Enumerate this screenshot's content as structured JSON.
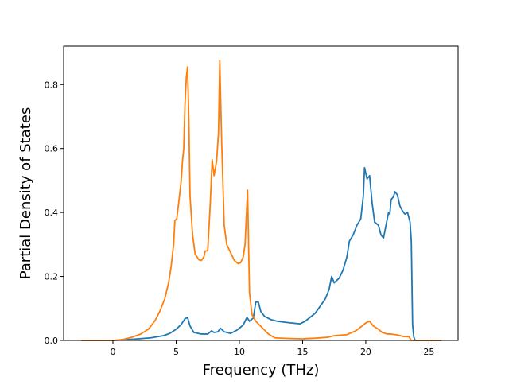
{
  "chart_data": {
    "type": "line",
    "title": "",
    "xlabel": "Frequency (THz)",
    "ylabel": "Partial Density of States",
    "xlim": [
      -3.9,
      27.3
    ],
    "ylim": [
      0,
      0.92
    ],
    "xticks": [
      0,
      5,
      10,
      15,
      20,
      25
    ],
    "yticks": [
      0.0,
      0.2,
      0.4,
      0.6,
      0.8
    ],
    "xtick_labels": [
      "0",
      "5",
      "10",
      "15",
      "20",
      "25"
    ],
    "ytick_labels": [
      "0.0",
      "0.2",
      "0.4",
      "0.6",
      "0.8"
    ],
    "grid": false,
    "legend": "none",
    "series": [
      {
        "color": "#1f77b4",
        "points": [
          [
            -2.5,
            0.0
          ],
          [
            0.0,
            0.0
          ],
          [
            1.0,
            0.002
          ],
          [
            2.0,
            0.005
          ],
          [
            3.0,
            0.008
          ],
          [
            4.0,
            0.015
          ],
          [
            4.5,
            0.022
          ],
          [
            5.0,
            0.035
          ],
          [
            5.4,
            0.05
          ],
          [
            5.7,
            0.068
          ],
          [
            5.9,
            0.072
          ],
          [
            6.1,
            0.045
          ],
          [
            6.4,
            0.025
          ],
          [
            7.0,
            0.02
          ],
          [
            7.5,
            0.02
          ],
          [
            7.8,
            0.03
          ],
          [
            8.0,
            0.025
          ],
          [
            8.3,
            0.027
          ],
          [
            8.5,
            0.038
          ],
          [
            8.8,
            0.027
          ],
          [
            9.3,
            0.022
          ],
          [
            9.8,
            0.032
          ],
          [
            10.3,
            0.048
          ],
          [
            10.6,
            0.072
          ],
          [
            10.8,
            0.06
          ],
          [
            11.1,
            0.07
          ],
          [
            11.3,
            0.12
          ],
          [
            11.5,
            0.12
          ],
          [
            11.7,
            0.09
          ],
          [
            12.0,
            0.075
          ],
          [
            12.5,
            0.065
          ],
          [
            13.0,
            0.06
          ],
          [
            14.0,
            0.055
          ],
          [
            14.8,
            0.052
          ],
          [
            15.2,
            0.06
          ],
          [
            16.0,
            0.085
          ],
          [
            16.8,
            0.13
          ],
          [
            17.1,
            0.16
          ],
          [
            17.3,
            0.2
          ],
          [
            17.5,
            0.18
          ],
          [
            17.9,
            0.195
          ],
          [
            18.2,
            0.22
          ],
          [
            18.5,
            0.26
          ],
          [
            18.7,
            0.31
          ],
          [
            19.0,
            0.33
          ],
          [
            19.3,
            0.36
          ],
          [
            19.6,
            0.38
          ],
          [
            19.8,
            0.45
          ],
          [
            19.9,
            0.54
          ],
          [
            20.1,
            0.505
          ],
          [
            20.3,
            0.515
          ],
          [
            20.5,
            0.43
          ],
          [
            20.7,
            0.37
          ],
          [
            21.0,
            0.36
          ],
          [
            21.2,
            0.33
          ],
          [
            21.4,
            0.32
          ],
          [
            21.6,
            0.36
          ],
          [
            21.8,
            0.4
          ],
          [
            21.9,
            0.395
          ],
          [
            22.0,
            0.44
          ],
          [
            22.2,
            0.45
          ],
          [
            22.3,
            0.465
          ],
          [
            22.5,
            0.455
          ],
          [
            22.7,
            0.42
          ],
          [
            22.9,
            0.405
          ],
          [
            23.1,
            0.395
          ],
          [
            23.3,
            0.4
          ],
          [
            23.5,
            0.37
          ],
          [
            23.6,
            0.31
          ],
          [
            23.7,
            0.05
          ],
          [
            23.8,
            0.01
          ],
          [
            23.9,
            0.0
          ],
          [
            26.0,
            0.0
          ]
        ]
      },
      {
        "color": "#ff7f0e",
        "points": [
          [
            -2.5,
            0.0
          ],
          [
            0.0,
            0.0
          ],
          [
            0.8,
            0.003
          ],
          [
            1.5,
            0.01
          ],
          [
            2.2,
            0.02
          ],
          [
            2.8,
            0.035
          ],
          [
            3.3,
            0.06
          ],
          [
            3.7,
            0.09
          ],
          [
            4.1,
            0.13
          ],
          [
            4.4,
            0.18
          ],
          [
            4.6,
            0.23
          ],
          [
            4.8,
            0.3
          ],
          [
            4.9,
            0.375
          ],
          [
            5.05,
            0.38
          ],
          [
            5.2,
            0.43
          ],
          [
            5.4,
            0.5
          ],
          [
            5.5,
            0.56
          ],
          [
            5.6,
            0.6
          ],
          [
            5.7,
            0.74
          ],
          [
            5.8,
            0.82
          ],
          [
            5.9,
            0.855
          ],
          [
            6.0,
            0.7
          ],
          [
            6.1,
            0.45
          ],
          [
            6.3,
            0.33
          ],
          [
            6.5,
            0.27
          ],
          [
            6.8,
            0.252
          ],
          [
            7.0,
            0.25
          ],
          [
            7.2,
            0.262
          ],
          [
            7.3,
            0.28
          ],
          [
            7.5,
            0.28
          ],
          [
            7.7,
            0.43
          ],
          [
            7.85,
            0.565
          ],
          [
            8.0,
            0.515
          ],
          [
            8.2,
            0.56
          ],
          [
            8.35,
            0.65
          ],
          [
            8.45,
            0.875
          ],
          [
            8.6,
            0.62
          ],
          [
            8.8,
            0.36
          ],
          [
            9.0,
            0.3
          ],
          [
            9.3,
            0.275
          ],
          [
            9.6,
            0.25
          ],
          [
            9.9,
            0.24
          ],
          [
            10.1,
            0.243
          ],
          [
            10.3,
            0.26
          ],
          [
            10.45,
            0.3
          ],
          [
            10.65,
            0.47
          ],
          [
            10.8,
            0.15
          ],
          [
            11.0,
            0.08
          ],
          [
            11.3,
            0.06
          ],
          [
            11.8,
            0.04
          ],
          [
            12.3,
            0.02
          ],
          [
            12.8,
            0.008
          ],
          [
            14.0,
            0.006
          ],
          [
            15.0,
            0.005
          ],
          [
            16.0,
            0.007
          ],
          [
            17.0,
            0.01
          ],
          [
            17.5,
            0.015
          ],
          [
            18.5,
            0.018
          ],
          [
            19.2,
            0.03
          ],
          [
            19.7,
            0.045
          ],
          [
            20.0,
            0.055
          ],
          [
            20.3,
            0.06
          ],
          [
            20.6,
            0.045
          ],
          [
            21.0,
            0.035
          ],
          [
            21.3,
            0.025
          ],
          [
            21.7,
            0.02
          ],
          [
            22.0,
            0.02
          ],
          [
            22.5,
            0.017
          ],
          [
            23.0,
            0.012
          ],
          [
            23.4,
            0.012
          ],
          [
            23.6,
            0.0
          ],
          [
            26.0,
            0.0
          ]
        ]
      }
    ]
  }
}
